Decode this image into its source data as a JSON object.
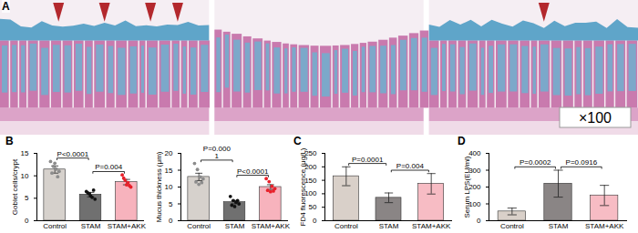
{
  "image_panel": {
    "label": "A",
    "images": 3,
    "magnification": "×100"
  },
  "chart_data": [
    {
      "type": "bar",
      "panel": "B",
      "y_label": "Goblet cells/crypt",
      "categories": [
        "Control",
        "STAM",
        "STAM+AKK"
      ],
      "values": [
        11.4,
        5.8,
        8.6
      ],
      "errors": [
        0.8,
        0.5,
        0.6
      ],
      "colors": [
        "#d6d1cc",
        "#707070",
        "#f7b3bd"
      ],
      "points": [
        {
          "color": "#8c8c8c",
          "values": [
            13.2,
            12.1,
            11.5,
            11.0,
            10.6,
            12.8,
            9.8
          ]
        },
        {
          "color": "#111111",
          "values": [
            6.5,
            6.0,
            5.2,
            4.8,
            6.2,
            5.5,
            6.8
          ]
        },
        {
          "color": "#e8202a",
          "values": [
            10.2,
            9.0,
            8.5,
            7.5,
            9.5,
            8.0,
            7.8
          ]
        }
      ],
      "annotations": [
        {
          "text": "P<0.0001",
          "pair": [
            "Control",
            "STAM"
          ]
        },
        {
          "text": "P=0.004",
          "pair": [
            "STAM",
            "STAM+AKK"
          ]
        }
      ],
      "ylim": [
        0,
        15
      ],
      "yticks": [
        0,
        5,
        10,
        15
      ]
    },
    {
      "type": "bar",
      "y_label": "Mucus thickness (μm)",
      "categories": [
        "Control",
        "STAM",
        "STAM+AKK"
      ],
      "values": [
        13.0,
        5.5,
        10.0
      ],
      "errors": [
        1.1,
        0.5,
        0.7
      ],
      "colors": [
        "#d6d1cc",
        "#707070",
        "#f7b3bd"
      ],
      "points": [
        {
          "color": "#8c8c8c",
          "values": [
            17.0,
            15.2,
            13.0,
            12.4,
            11.5,
            10.8,
            11.3
          ]
        },
        {
          "color": "#111111",
          "values": [
            7.2,
            6.0,
            5.5,
            5.0,
            4.6,
            4.2,
            6.0
          ]
        },
        {
          "color": "#e8202a",
          "values": [
            12.5,
            11.6,
            10.2,
            9.5,
            9.0,
            8.6,
            8.8
          ]
        }
      ],
      "annotations": [
        {
          "text": "P=0.000\n1",
          "pair": [
            "Control",
            "STAM"
          ]
        },
        {
          "text": "P<0.0001",
          "pair": [
            "STAM",
            "STAM+AKK"
          ]
        }
      ],
      "ylim": [
        0,
        20
      ],
      "yticks": [
        0,
        5,
        10,
        15,
        20
      ]
    },
    {
      "type": "bar",
      "panel": "C",
      "y_label": "FD4 fluorescence (μg/L)",
      "categories": [
        "Control",
        "STAM",
        "STAM+AKK"
      ],
      "values": [
        165,
        85,
        137
      ],
      "errors": [
        35,
        18,
        38
      ],
      "colors": [
        "#d9d0c9",
        "#8a8585",
        "#f7bcc4"
      ],
      "annotations": [
        {
          "text": "P=0.0001",
          "pair": [
            "Control",
            "STAM"
          ]
        },
        {
          "text": "P=0.004",
          "pair": [
            "STAM",
            "STAM+AKK"
          ]
        }
      ],
      "ylim": [
        0,
        250
      ],
      "yticks": [
        0,
        50,
        100,
        150,
        200,
        250
      ]
    },
    {
      "type": "bar",
      "panel": "D",
      "y_label": "Serum LPS(EU/ml)",
      "categories": [
        "Control",
        "STAM",
        "STAM+AKK"
      ],
      "values": [
        55,
        220,
        150
      ],
      "errors": [
        20,
        80,
        60
      ],
      "colors": [
        "#d9d0c9",
        "#8a8585",
        "#f7bcc4"
      ],
      "annotations": [
        {
          "text": "P=0.0002",
          "pair": [
            "Control",
            "STAM"
          ]
        },
        {
          "text": "P=0.0916",
          "pair": [
            "STAM",
            "STAM+AKK"
          ]
        }
      ],
      "ylim": [
        0,
        400
      ],
      "yticks": [
        0,
        100,
        200,
        300,
        400
      ]
    }
  ]
}
